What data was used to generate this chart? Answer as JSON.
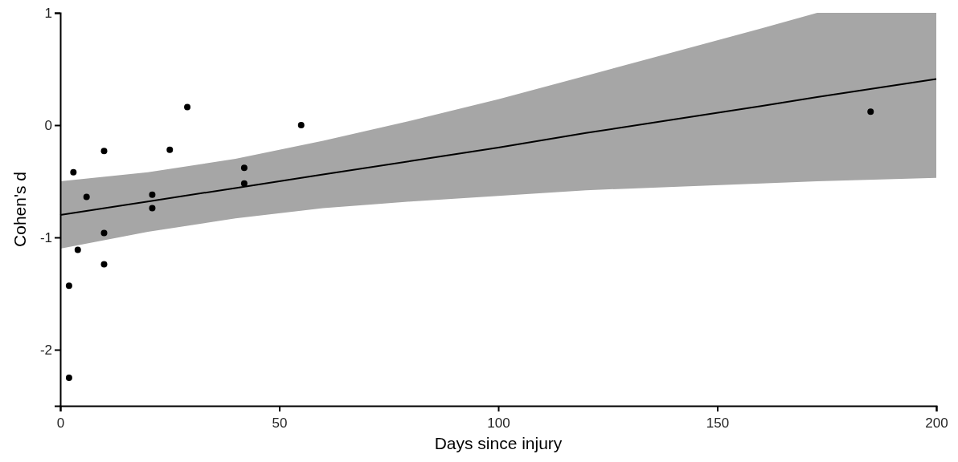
{
  "chart_data": {
    "type": "scatter",
    "xlabel": "Days since injury",
    "ylabel": "Cohen's d",
    "xlim": [
      0,
      200
    ],
    "ylim": [
      -2.5,
      1
    ],
    "xticks": [
      0,
      50,
      100,
      150,
      200
    ],
    "yticks": [
      -2,
      -1,
      0,
      1
    ],
    "grid": false,
    "series": [
      {
        "type": "line",
        "color": "#000000",
        "marker": "none",
        "line_style": "solid",
        "x": [
          0,
          20,
          40,
          60,
          80,
          100,
          120,
          140,
          160,
          172.8,
          200
        ],
        "values": [
          -0.8,
          -0.68,
          -0.56,
          -0.44,
          -0.32,
          -0.2,
          -0.07,
          0.05,
          0.17,
          0.25,
          0.41
        ],
        "lower": [
          -1.1,
          -0.95,
          -0.83,
          -0.74,
          -0.68,
          -0.63,
          -0.58,
          -0.55,
          -0.52,
          -0.5,
          -0.47
        ],
        "upper": [
          -0.5,
          -0.42,
          -0.3,
          -0.14,
          0.04,
          0.23,
          0.44,
          0.65,
          0.86,
          1.0,
          1.0
        ]
      },
      {
        "color": "#000000",
        "marker": "circle",
        "x": [
          2,
          2,
          3,
          4,
          6,
          10,
          10,
          10,
          21,
          21,
          25,
          29,
          42,
          42,
          55,
          185
        ],
        "values": [
          -2.25,
          -1.43,
          -0.42,
          -1.11,
          -0.64,
          -0.23,
          -0.96,
          -1.24,
          -0.62,
          -0.74,
          -0.22,
          0.16,
          -0.38,
          -0.52,
          0,
          0.12
        ]
      }
    ]
  }
}
